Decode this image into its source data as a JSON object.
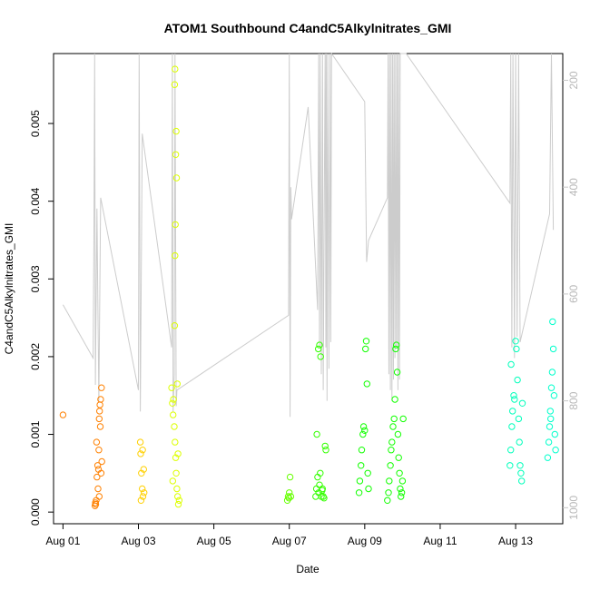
{
  "chart_data": {
    "type": "scatter",
    "title": "ATOM1 Southbound C4andC5Alkylnitrates_GMI",
    "xlabel": "Date",
    "ylabel": "C4andC5Alkylnitrates_GMI",
    "xlim": [
      -0.25,
      13.25
    ],
    "ylim": [
      -0.00015,
      0.0059
    ],
    "x_ticks": [
      0,
      2,
      4,
      6,
      8,
      10,
      12
    ],
    "x_tick_labels": [
      "Aug 01",
      "Aug 03",
      "Aug 05",
      "Aug 07",
      "Aug 09",
      "Aug 11",
      "Aug 13"
    ],
    "y_ticks": [
      0,
      0.001,
      0.002,
      0.003,
      0.004,
      0.005
    ],
    "y_tick_labels": [
      "0.000",
      "0.001",
      "0.002",
      "0.003",
      "0.004",
      "0.005"
    ],
    "right_axis": {
      "ticks": [
        200,
        400,
        600,
        800,
        1000
      ],
      "tick_labels": [
        "200",
        "400",
        "600",
        "800",
        "1000"
      ],
      "reversed": true,
      "range": [
        150,
        1030
      ],
      "color": "#c8c8c8"
    },
    "grid": false,
    "legend": "none",
    "series": [
      {
        "color": "#ff8000",
        "points": [
          [
            0.0,
            0.00125
          ],
          [
            0.85,
            8e-05
          ],
          [
            0.86,
            0.00012
          ],
          [
            0.87,
            0.0001
          ],
          [
            0.88,
            0.00015
          ],
          [
            0.9,
            0.00045
          ],
          [
            0.92,
            0.0006
          ],
          [
            0.94,
            0.00055
          ],
          [
            0.95,
            0.0008
          ],
          [
            0.96,
            0.0012
          ],
          [
            0.97,
            0.0013
          ],
          [
            0.98,
            0.00138
          ],
          [
            1.0,
            0.00145
          ],
          [
            1.02,
            0.0016
          ],
          [
            0.99,
            0.0011
          ],
          [
            1.01,
            0.0005
          ],
          [
            0.93,
            0.0003
          ],
          [
            0.96,
            0.0002
          ],
          [
            0.89,
            0.0009
          ],
          [
            1.03,
            0.00065
          ]
        ]
      },
      {
        "color": "#ffd000",
        "points": [
          [
            2.05,
            0.0009
          ],
          [
            2.06,
            0.00075
          ],
          [
            2.08,
            0.0005
          ],
          [
            2.1,
            0.0003
          ],
          [
            2.12,
            0.0002
          ],
          [
            2.14,
            0.00055
          ],
          [
            2.07,
            0.00015
          ],
          [
            2.11,
            0.0008
          ],
          [
            2.15,
            0.00025
          ]
        ]
      },
      {
        "color": "#ddff00",
        "points": [
          [
            2.88,
            0.0016
          ],
          [
            2.9,
            0.0014
          ],
          [
            2.92,
            0.00125
          ],
          [
            2.95,
            0.0011
          ],
          [
            2.97,
            0.0009
          ],
          [
            2.99,
            0.0007
          ],
          [
            3.0,
            0.0005
          ],
          [
            3.02,
            0.0003
          ],
          [
            3.04,
            0.0002
          ],
          [
            3.06,
            0.0001
          ],
          [
            2.93,
            0.00145
          ],
          [
            3.05,
            0.00075
          ],
          [
            2.96,
            0.0024
          ],
          [
            2.97,
            0.0033
          ],
          [
            2.98,
            0.0037
          ],
          [
            2.99,
            0.0046
          ],
          [
            3.0,
            0.0049
          ],
          [
            2.96,
            0.0055
          ],
          [
            2.97,
            0.0057
          ],
          [
            3.01,
            0.0043
          ],
          [
            3.03,
            0.00165
          ],
          [
            2.91,
            0.0004
          ],
          [
            3.08,
            0.00015
          ]
        ]
      },
      {
        "color": "#66ff00",
        "points": [
          [
            5.95,
            0.00015
          ],
          [
            5.97,
            0.0002
          ],
          [
            6.0,
            0.00025
          ],
          [
            6.02,
            0.00045
          ],
          [
            6.04,
            0.0002
          ],
          [
            5.99,
            0.00018
          ]
        ]
      },
      {
        "color": "#33ff00",
        "points": [
          [
            6.7,
            0.0002
          ],
          [
            6.72,
            0.0003
          ],
          [
            6.75,
            0.00045
          ],
          [
            6.78,
            0.00025
          ],
          [
            6.8,
            0.00035
          ],
          [
            6.82,
            0.0005
          ],
          [
            6.85,
            0.0002
          ],
          [
            6.88,
            0.0003
          ],
          [
            6.9,
            0.0002
          ],
          [
            6.92,
            0.00018
          ],
          [
            6.95,
            0.00085
          ],
          [
            6.97,
            0.0008
          ],
          [
            6.73,
            0.001
          ],
          [
            6.77,
            0.0021
          ],
          [
            6.8,
            0.00215
          ],
          [
            6.83,
            0.002
          ],
          [
            6.87,
            0.00028
          ]
        ]
      },
      {
        "color": "#11ff00",
        "points": [
          [
            7.85,
            0.00025
          ],
          [
            7.87,
            0.0004
          ],
          [
            7.9,
            0.0006
          ],
          [
            7.92,
            0.0008
          ],
          [
            7.95,
            0.001
          ],
          [
            7.97,
            0.0011
          ],
          [
            8.0,
            0.00105
          ],
          [
            8.02,
            0.0021
          ],
          [
            8.04,
            0.0022
          ],
          [
            8.06,
            0.00165
          ],
          [
            8.08,
            0.0005
          ],
          [
            8.1,
            0.0003
          ],
          [
            8.6,
            0.00015
          ],
          [
            8.63,
            0.00025
          ],
          [
            8.65,
            0.0004
          ],
          [
            8.68,
            0.0006
          ],
          [
            8.7,
            0.0008
          ],
          [
            8.72,
            0.0009
          ],
          [
            8.75,
            0.0011
          ],
          [
            8.78,
            0.0012
          ],
          [
            8.8,
            0.00145
          ],
          [
            8.82,
            0.0021
          ],
          [
            8.84,
            0.00215
          ],
          [
            8.86,
            0.0018
          ],
          [
            8.88,
            0.001
          ],
          [
            8.9,
            0.0007
          ],
          [
            8.92,
            0.0005
          ],
          [
            8.94,
            0.0003
          ],
          [
            8.96,
            0.0002
          ],
          [
            8.98,
            0.00025
          ],
          [
            9.0,
            0.0004
          ],
          [
            9.02,
            0.0012
          ]
        ]
      },
      {
        "color": "#00ffbb",
        "points": [
          [
            11.85,
            0.0006
          ],
          [
            11.87,
            0.0008
          ],
          [
            11.9,
            0.0011
          ],
          [
            11.92,
            0.0013
          ],
          [
            11.95,
            0.0015
          ],
          [
            11.97,
            0.00145
          ],
          [
            12.0,
            0.0022
          ],
          [
            12.02,
            0.0021
          ],
          [
            12.05,
            0.0017
          ],
          [
            12.08,
            0.0012
          ],
          [
            12.1,
            0.0009
          ],
          [
            12.12,
            0.0006
          ],
          [
            12.14,
            0.0005
          ],
          [
            12.16,
            0.0004
          ],
          [
            12.18,
            0.0014
          ],
          [
            11.88,
            0.0019
          ]
        ]
      },
      {
        "color": "#00ffcc",
        "points": [
          [
            12.85,
            0.0007
          ],
          [
            12.88,
            0.0009
          ],
          [
            12.9,
            0.0011
          ],
          [
            12.92,
            0.0013
          ],
          [
            12.95,
            0.0016
          ],
          [
            12.97,
            0.0018
          ],
          [
            13.0,
            0.0021
          ],
          [
            13.02,
            0.0015
          ],
          [
            13.04,
            0.001
          ],
          [
            13.06,
            0.0008
          ],
          [
            12.98,
            0.00245
          ],
          [
            12.93,
            0.0012
          ]
        ]
      }
    ],
    "altitude_line": {
      "color": "#cccccc",
      "points": [
        [
          0.0,
          620
        ],
        [
          0.8,
          720
        ],
        [
          0.82,
          480
        ],
        [
          0.84,
          100
        ],
        [
          0.86,
          770
        ],
        [
          0.9,
          440
        ],
        [
          0.95,
          800
        ],
        [
          1.0,
          420
        ],
        [
          2.0,
          780
        ],
        [
          2.02,
          120
        ],
        [
          2.05,
          820
        ],
        [
          2.1,
          300
        ],
        [
          2.88,
          700
        ],
        [
          2.9,
          150
        ],
        [
          2.92,
          820
        ],
        [
          2.95,
          750
        ],
        [
          2.97,
          100
        ],
        [
          3.0,
          810
        ],
        [
          3.02,
          780
        ],
        [
          5.98,
          640
        ],
        [
          6.0,
          100
        ],
        [
          6.02,
          830
        ],
        [
          6.04,
          400
        ],
        [
          6.06,
          460
        ],
        [
          6.5,
          250
        ],
        [
          6.75,
          630
        ],
        [
          6.78,
          100
        ],
        [
          6.8,
          700
        ],
        [
          6.82,
          110
        ],
        [
          6.85,
          750
        ],
        [
          6.88,
          100
        ],
        [
          6.9,
          780
        ],
        [
          6.95,
          100
        ],
        [
          6.97,
          700
        ],
        [
          6.98,
          100
        ],
        [
          7.0,
          800
        ],
        [
          7.02,
          100
        ],
        [
          7.05,
          740
        ],
        [
          7.08,
          100
        ],
        [
          7.1,
          690
        ],
        [
          7.12,
          100
        ],
        [
          8.0,
          240
        ],
        [
          8.05,
          540
        ],
        [
          8.1,
          500
        ],
        [
          8.6,
          420
        ],
        [
          8.62,
          100
        ],
        [
          8.64,
          750
        ],
        [
          8.66,
          100
        ],
        [
          8.68,
          780
        ],
        [
          8.7,
          100
        ],
        [
          8.72,
          800
        ],
        [
          8.74,
          100
        ],
        [
          8.76,
          760
        ],
        [
          8.78,
          100
        ],
        [
          8.8,
          720
        ],
        [
          8.82,
          100
        ],
        [
          8.84,
          700
        ],
        [
          8.86,
          100
        ],
        [
          8.88,
          780
        ],
        [
          8.9,
          100
        ],
        [
          8.92,
          760
        ],
        [
          8.94,
          100
        ],
        [
          9.1,
          100
        ],
        [
          11.85,
          430
        ],
        [
          11.87,
          100
        ],
        [
          11.9,
          700
        ],
        [
          11.93,
          100
        ],
        [
          11.97,
          720
        ],
        [
          12.0,
          100
        ],
        [
          12.04,
          680
        ],
        [
          12.08,
          100
        ],
        [
          12.12,
          690
        ],
        [
          12.9,
          450
        ],
        [
          12.95,
          100
        ],
        [
          13.0,
          480
        ]
      ]
    }
  }
}
